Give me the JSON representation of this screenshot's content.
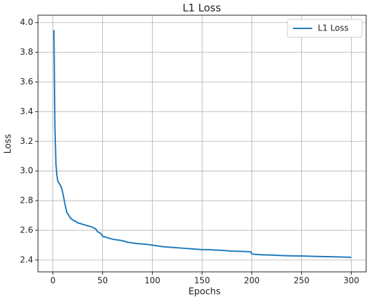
{
  "chart_data": {
    "type": "line",
    "title": "L1 Loss",
    "xlabel": "Epochs",
    "ylabel": "Loss",
    "x": [
      1,
      2,
      3,
      4,
      5,
      7,
      9,
      10,
      12,
      14,
      16,
      18,
      20,
      23,
      25,
      28,
      30,
      33,
      35,
      38,
      40,
      43,
      45,
      48,
      50,
      55,
      60,
      65,
      70,
      75,
      80,
      85,
      90,
      95,
      100,
      110,
      120,
      130,
      140,
      150,
      158,
      160,
      170,
      180,
      190,
      199,
      200,
      210,
      220,
      230,
      240,
      250,
      260,
      270,
      280,
      290,
      300
    ],
    "series": [
      {
        "name": "L1 Loss",
        "color": "#1f7bbf",
        "values": [
          3.95,
          3.3,
          3.05,
          2.97,
          2.93,
          2.91,
          2.88,
          2.85,
          2.78,
          2.72,
          2.7,
          2.68,
          2.67,
          2.66,
          2.65,
          2.645,
          2.64,
          2.635,
          2.63,
          2.625,
          2.62,
          2.61,
          2.59,
          2.58,
          2.56,
          2.55,
          2.54,
          2.535,
          2.53,
          2.52,
          2.515,
          2.51,
          2.508,
          2.505,
          2.5,
          2.49,
          2.485,
          2.48,
          2.475,
          2.47,
          2.47,
          2.468,
          2.465,
          2.46,
          2.458,
          2.455,
          2.44,
          2.435,
          2.433,
          2.43,
          2.428,
          2.427,
          2.425,
          2.423,
          2.422,
          2.42,
          2.418
        ]
      }
    ],
    "xlim": [
      -15,
      315
    ],
    "ylim": [
      2.32,
      4.05
    ],
    "xticks": [
      0,
      50,
      100,
      150,
      200,
      250,
      300
    ],
    "yticks": [
      2.4,
      2.6,
      2.8,
      {
        "value": 3,
        "label": "3.0"
      },
      3.2,
      3.4,
      3.6,
      3.8,
      {
        "value": 4,
        "label": "4.0"
      }
    ],
    "grid": true,
    "legend": "upper right"
  }
}
